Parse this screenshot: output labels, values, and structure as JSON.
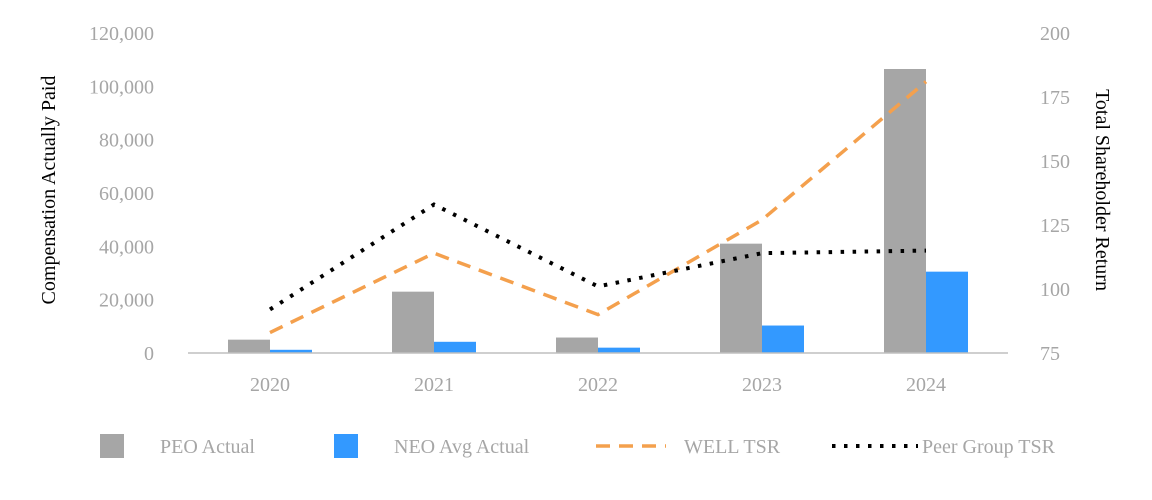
{
  "chart_data": {
    "type": "bar",
    "categories": [
      "2020",
      "2021",
      "2022",
      "2023",
      "2024"
    ],
    "title": "",
    "ylabel_left": "Compensation Actually Paid",
    "ylabel_right": "Total Shareholder Return",
    "ylim_left": [
      0,
      120000
    ],
    "ylim_right": [
      75,
      200
    ],
    "yticks_left": [
      "0",
      "20,000",
      "40,000",
      "60,000",
      "80,000",
      "100,000",
      "120,000"
    ],
    "yticks_right": [
      "75",
      "100",
      "125",
      "150",
      "175",
      "200"
    ],
    "grid": false,
    "legend_position": "bottom",
    "bar_series": [
      {
        "name": "PEO Actual",
        "color": "#a6a6a6",
        "axis": "left",
        "values": [
          5000,
          23000,
          5800,
          41000,
          106500
        ]
      },
      {
        "name": "NEO Avg Actual",
        "color": "#3399ff",
        "axis": "left",
        "values": [
          1200,
          4200,
          2000,
          10300,
          30500
        ]
      }
    ],
    "line_series": [
      {
        "name": "WELL TSR",
        "color": "#f4a04d",
        "style": "dashed",
        "axis": "right",
        "values": [
          83,
          114,
          90,
          127,
          181
        ]
      },
      {
        "name": "Peer Group TSR",
        "color": "#000000",
        "style": "dotted",
        "axis": "right",
        "values": [
          92,
          133,
          101,
          114,
          115
        ]
      }
    ]
  }
}
